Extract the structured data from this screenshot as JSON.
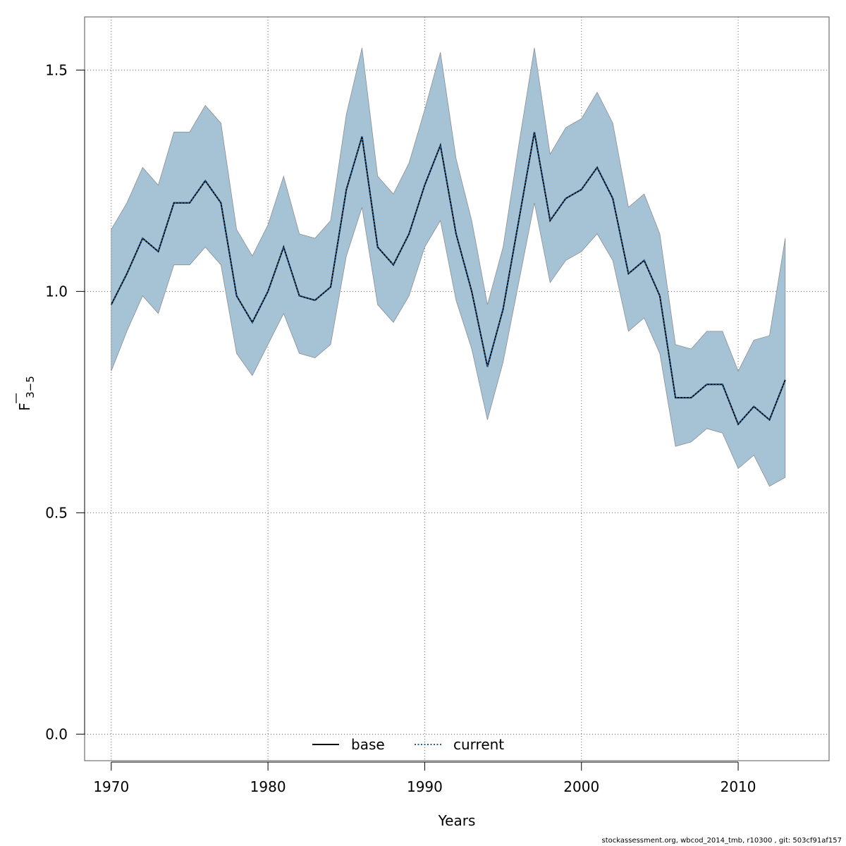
{
  "chart_data": {
    "type": "line",
    "xlabel": "Years",
    "ylabel": "F",
    "ylabel_subscript": "3−5",
    "xlim": [
      1968.3,
      2015.8
    ],
    "ylim": [
      -0.06,
      1.62
    ],
    "x_ticks": [
      1970,
      1980,
      1990,
      2000,
      2010
    ],
    "x_tick_labels": [
      "1970",
      "1980",
      "1990",
      "2000",
      "2010"
    ],
    "y_ticks": [
      0.0,
      0.5,
      1.0,
      1.5
    ],
    "y_tick_labels": [
      "0.0",
      "0.5",
      "1.0",
      "1.5"
    ],
    "grid": true,
    "legend_position": "bottom-center",
    "x": [
      1970,
      1971,
      1972,
      1973,
      1974,
      1975,
      1976,
      1977,
      1978,
      1979,
      1980,
      1981,
      1982,
      1983,
      1984,
      1985,
      1986,
      1987,
      1988,
      1989,
      1990,
      1991,
      1992,
      1993,
      1994,
      1995,
      1996,
      1997,
      1998,
      1999,
      2000,
      2001,
      2002,
      2003,
      2004,
      2005,
      2006,
      2007,
      2008,
      2009,
      2010,
      2011,
      2012,
      2013
    ],
    "series": [
      {
        "name": "base",
        "style": "solid",
        "color": "#000000",
        "values": [
          0.97,
          1.04,
          1.12,
          1.09,
          1.2,
          1.2,
          1.25,
          1.2,
          0.99,
          0.93,
          1.0,
          1.1,
          0.99,
          0.98,
          1.01,
          1.23,
          1.35,
          1.1,
          1.06,
          1.13,
          1.24,
          1.33,
          1.13,
          1.0,
          0.83,
          0.96,
          1.16,
          1.36,
          1.16,
          1.21,
          1.23,
          1.28,
          1.21,
          1.04,
          1.07,
          0.99,
          0.76,
          0.76,
          0.79,
          0.79,
          0.7,
          0.74,
          0.71,
          0.8
        ]
      },
      {
        "name": "current",
        "style": "dotted",
        "color": "#1f5f9a",
        "values": [
          0.97,
          1.04,
          1.12,
          1.09,
          1.2,
          1.2,
          1.25,
          1.2,
          0.99,
          0.93,
          1.0,
          1.1,
          0.99,
          0.98,
          1.01,
          1.23,
          1.35,
          1.1,
          1.06,
          1.13,
          1.24,
          1.33,
          1.13,
          1.0,
          0.83,
          0.96,
          1.16,
          1.36,
          1.16,
          1.21,
          1.23,
          1.28,
          1.21,
          1.04,
          1.07,
          0.99,
          0.76,
          0.76,
          0.79,
          0.79,
          0.7,
          0.74,
          0.71,
          0.8
        ]
      }
    ],
    "band": {
      "color": "#a5c3d4",
      "upper": [
        1.14,
        1.2,
        1.28,
        1.24,
        1.36,
        1.36,
        1.42,
        1.38,
        1.14,
        1.08,
        1.15,
        1.26,
        1.13,
        1.12,
        1.16,
        1.4,
        1.55,
        1.26,
        1.22,
        1.29,
        1.41,
        1.54,
        1.3,
        1.16,
        0.97,
        1.1,
        1.33,
        1.55,
        1.31,
        1.37,
        1.39,
        1.45,
        1.38,
        1.19,
        1.22,
        1.13,
        0.88,
        0.87,
        0.91,
        0.91,
        0.82,
        0.89,
        0.9,
        1.12
      ],
      "lower": [
        0.82,
        0.91,
        0.99,
        0.95,
        1.06,
        1.06,
        1.1,
        1.06,
        0.86,
        0.81,
        0.88,
        0.95,
        0.86,
        0.85,
        0.88,
        1.08,
        1.19,
        0.97,
        0.93,
        0.99,
        1.1,
        1.16,
        0.98,
        0.87,
        0.71,
        0.84,
        1.02,
        1.2,
        1.02,
        1.07,
        1.09,
        1.13,
        1.07,
        0.91,
        0.94,
        0.86,
        0.65,
        0.66,
        0.69,
        0.68,
        0.6,
        0.63,
        0.56,
        0.58
      ]
    }
  },
  "footer": {
    "text": "stockassessment.org, wbcod_2014_tmb, r10300 , git: 503cf91af157"
  }
}
